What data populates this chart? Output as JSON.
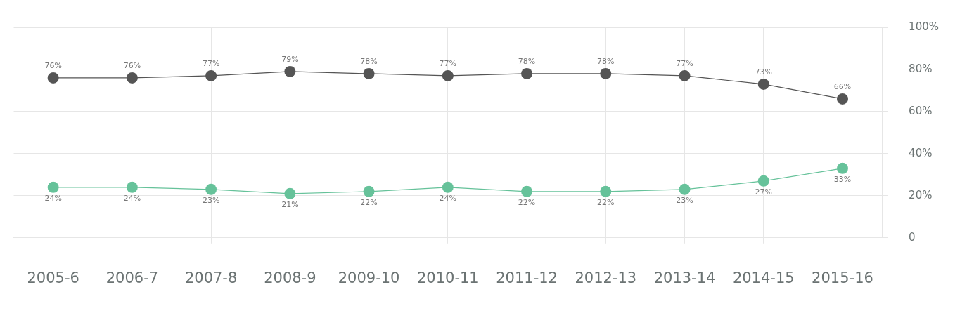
{
  "chart_data": {
    "type": "line",
    "categories": [
      "2005-6",
      "2006-7",
      "2007-8",
      "2008-9",
      "2009-10",
      "2010-11",
      "2011-12",
      "2012-13",
      "2013-14",
      "2014-15",
      "2015-16"
    ],
    "series": [
      {
        "color": "#555555",
        "values": [
          76,
          76,
          77,
          79,
          78,
          77,
          78,
          78,
          77,
          73,
          66
        ],
        "value_labels": [
          "76%",
          "76%",
          "77%",
          "79%",
          "78%",
          "77%",
          "78%",
          "78%",
          "77%",
          "73%",
          "66%"
        ]
      },
      {
        "color": "#66c29a",
        "values": [
          24,
          24,
          23,
          21,
          22,
          24,
          22,
          22,
          23,
          27,
          33
        ],
        "value_labels": [
          "24%",
          "24%",
          "23%",
          "21%",
          "22%",
          "24%",
          "22%",
          "22%",
          "23%",
          "27%",
          "33%"
        ]
      }
    ],
    "ylim": [
      0,
      100
    ],
    "yticks": [
      {
        "value": 0,
        "label": "0"
      },
      {
        "value": 20,
        "label": "20%"
      },
      {
        "value": 40,
        "label": "40%"
      },
      {
        "value": 60,
        "label": "60%"
      },
      {
        "value": 80,
        "label": "80%"
      },
      {
        "value": 100,
        "label": "100%"
      }
    ],
    "grid": true,
    "legend": false,
    "marker": "circle",
    "line_style": "solid"
  }
}
